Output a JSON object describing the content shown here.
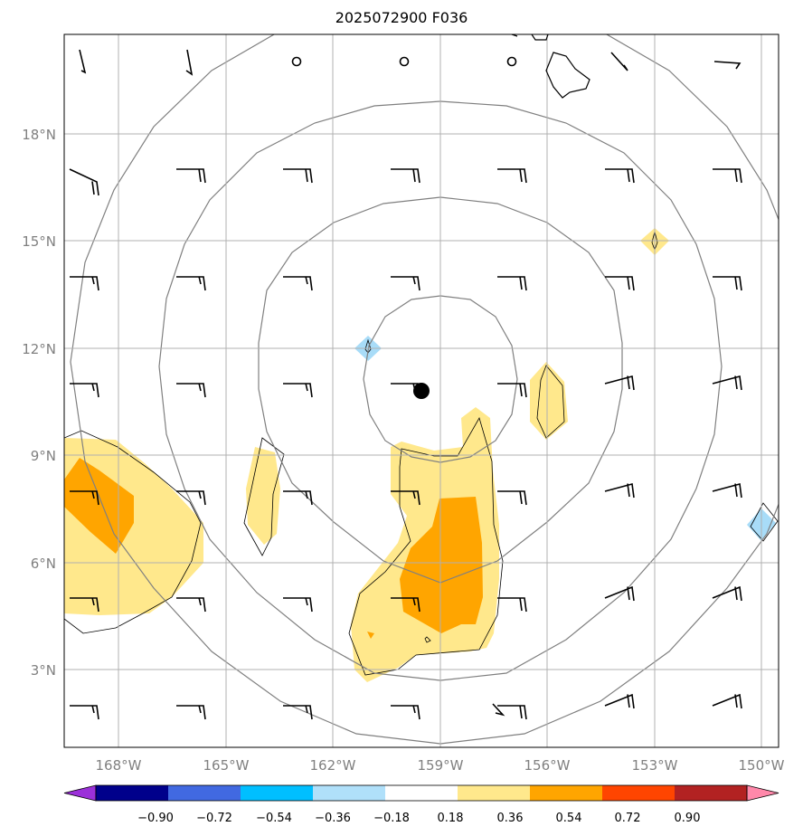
{
  "title": "2025072900 F036",
  "axes": {
    "lat_labels": [
      "18°N",
      "15°N",
      "12°N",
      "9°N",
      "6°N",
      "3°N"
    ],
    "lon_labels": [
      "168°W",
      "165°W",
      "162°W",
      "159°W",
      "156°W",
      "153°W",
      "150°W"
    ]
  },
  "colorbar": {
    "tick_labels": [
      "−0.90",
      "−0.72",
      "−0.54",
      "−0.36",
      "−0.18",
      "0.18",
      "0.36",
      "0.54",
      "0.72",
      "0.90"
    ],
    "colors": [
      "#9b30d9",
      "#00008b",
      "#4169e1",
      "#00bfff",
      "#b0e0fa",
      "#ffffff",
      "#ffe88c",
      "#ffa500",
      "#ff4500",
      "#b22222",
      "#ff88aa"
    ]
  },
  "map_colors": {
    "fill_low": "#ffe88c",
    "fill_mid": "#ffa500",
    "fill_neg": "#a8dcf8",
    "ring": "#808080",
    "grid": "#b0b0b0",
    "center_marker": "#000000"
  },
  "icons": {
    "wind_barbs": "wind-barb-icon",
    "center": "storm-center-icon"
  }
}
